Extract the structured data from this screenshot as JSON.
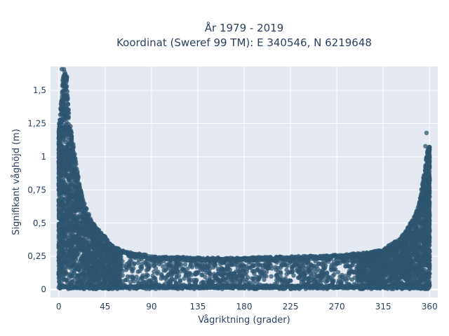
{
  "chart_data": {
    "type": "scatter",
    "title_lines": [
      "År 1979 - 2019",
      "Koordinat (Sweref 99 TM): E 340546, N 6219648"
    ],
    "xlabel": "Vågriktning (grader)",
    "ylabel": "Signifikant våghöjd (m)",
    "xlim": [
      -8,
      368
    ],
    "ylim": [
      -0.06,
      1.68
    ],
    "x_ticks": [
      0,
      45,
      90,
      135,
      180,
      225,
      270,
      315,
      360
    ],
    "x_tick_labels": [
      "0",
      "45",
      "90",
      "135",
      "180",
      "225",
      "270",
      "315",
      "360"
    ],
    "y_ticks": [
      0,
      0.25,
      0.5,
      0.75,
      1,
      1.25,
      1.5
    ],
    "y_tick_labels": [
      "0",
      "0,25",
      "0,5",
      "0,75",
      "1",
      "1,25",
      "1,5"
    ],
    "grid": true,
    "legend": "none",
    "marker_color": "#2d5670",
    "background_color": "#e5e9f1",
    "envelope": {
      "x": [
        0,
        2,
        4,
        6,
        8,
        10,
        15,
        20,
        25,
        30,
        35,
        40,
        45,
        50,
        60,
        70,
        80,
        90,
        135,
        180,
        225,
        270,
        300,
        315,
        320,
        330,
        335,
        340,
        345,
        350,
        352,
        354,
        356,
        358,
        360
      ],
      "y_max": [
        1.2,
        1.4,
        1.6,
        1.65,
        1.6,
        1.3,
        1.05,
        0.8,
        0.65,
        0.55,
        0.48,
        0.44,
        0.4,
        0.34,
        0.3,
        0.28,
        0.27,
        0.25,
        0.24,
        0.24,
        0.25,
        0.26,
        0.28,
        0.3,
        0.33,
        0.38,
        0.42,
        0.48,
        0.55,
        0.65,
        0.75,
        0.85,
        0.95,
        1.05,
        1.08
      ]
    },
    "outliers": [
      {
        "x": 357,
        "y": 1.18
      },
      {
        "x": 356,
        "y": 1.08
      },
      {
        "x": 360,
        "y": 1.0
      },
      {
        "x": 12,
        "y": 1.12
      },
      {
        "x": 3,
        "y": 1.66
      },
      {
        "x": 5,
        "y": 1.66
      }
    ]
  }
}
